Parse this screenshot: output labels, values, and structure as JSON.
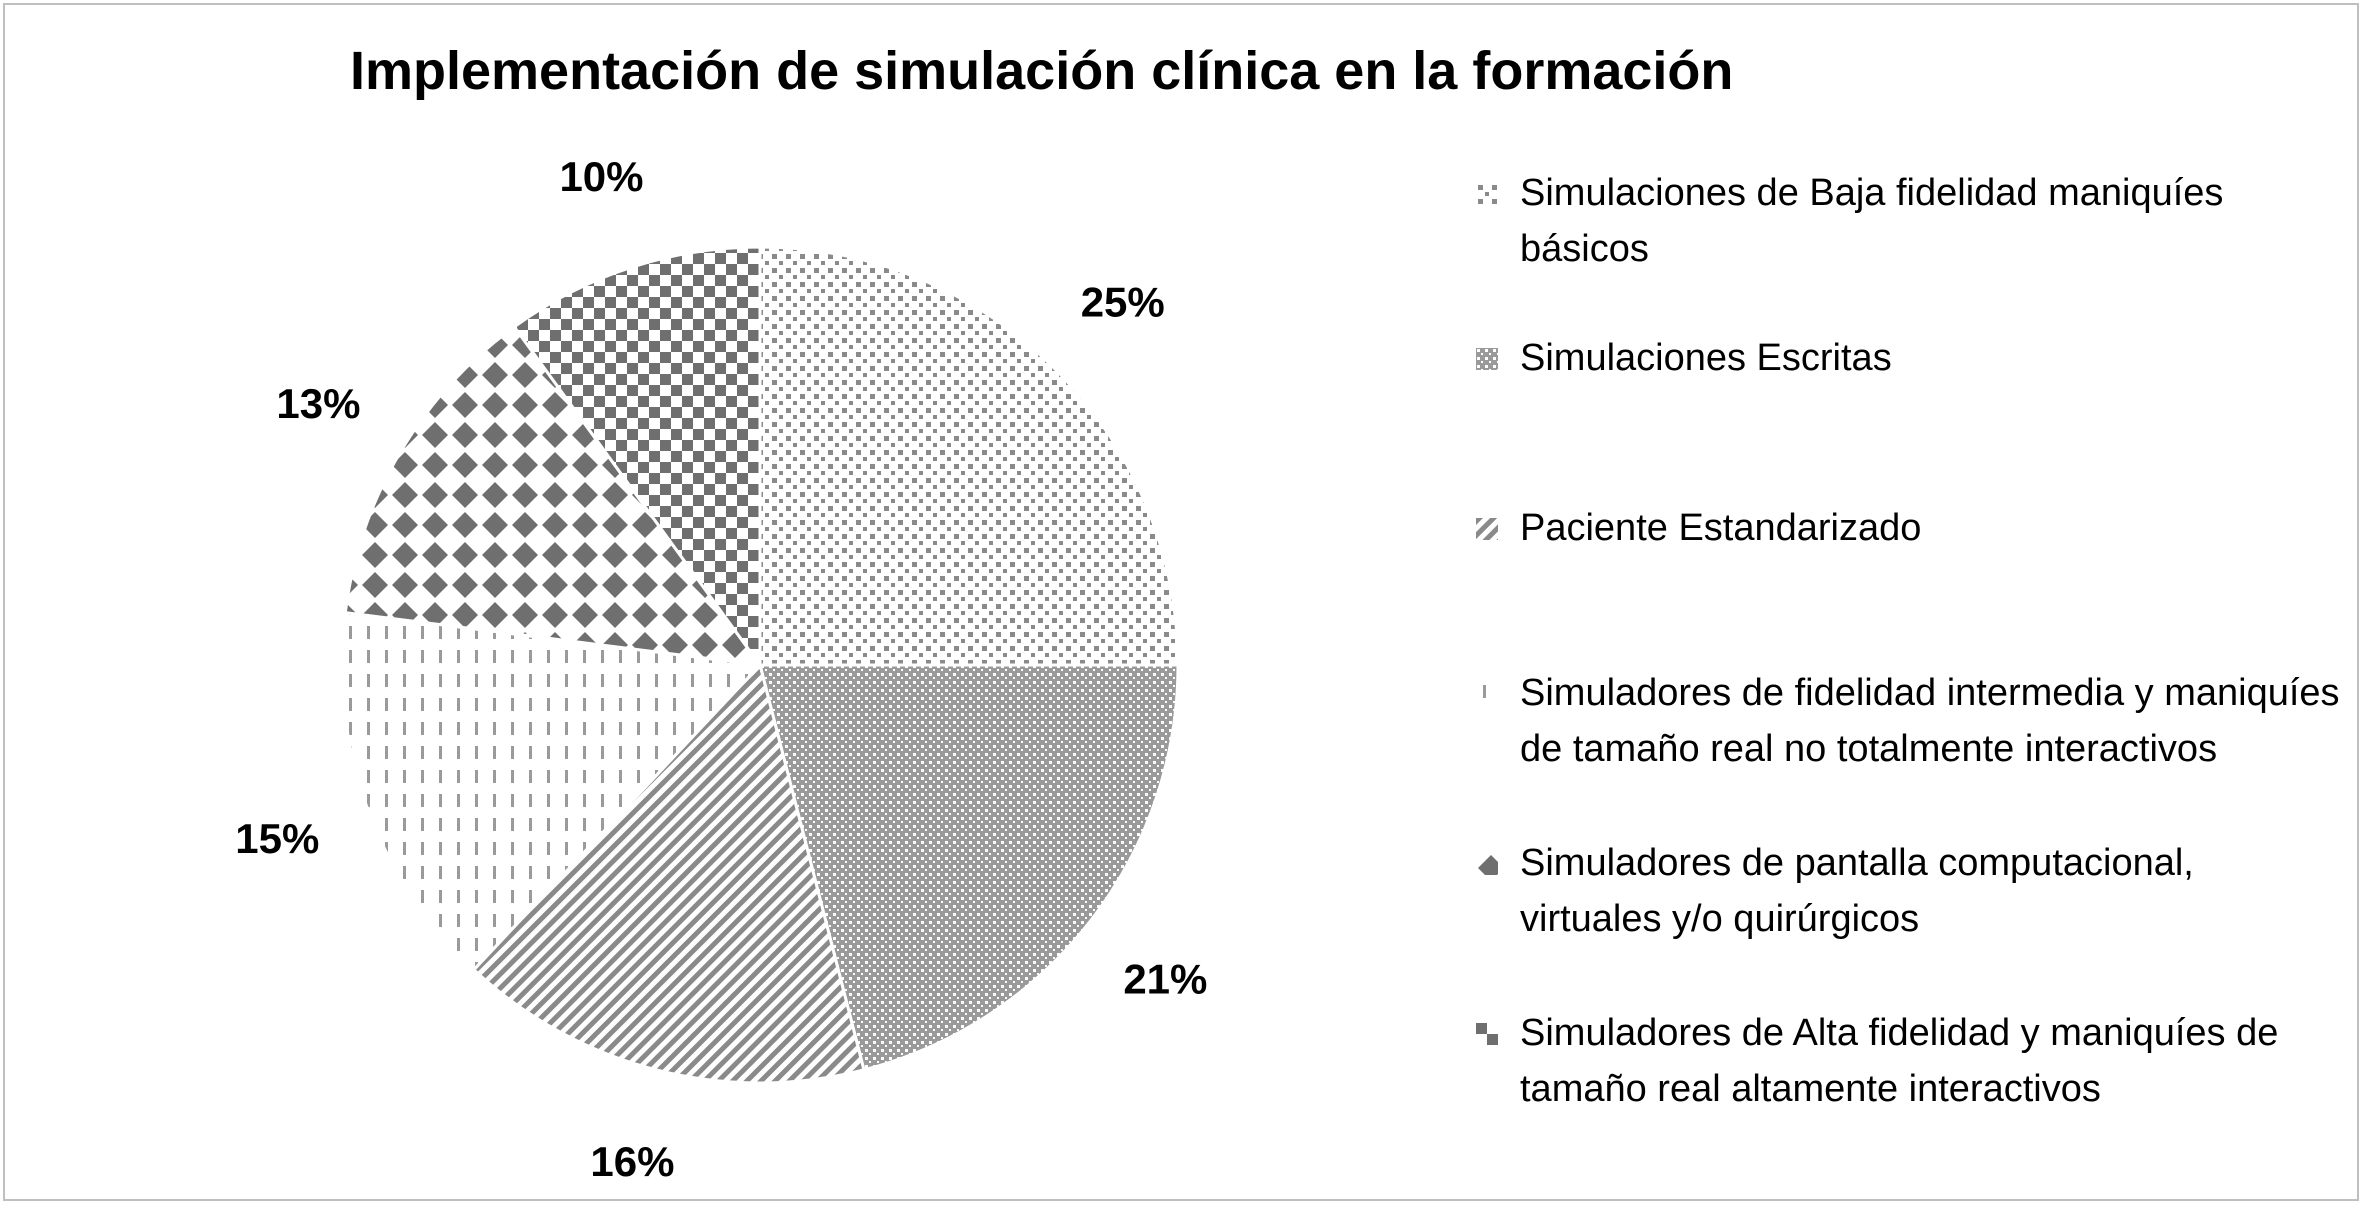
{
  "chart_data": {
    "type": "pie",
    "title": "Implementación de simulación clínica en la formación",
    "categories": [
      "Simulaciones de Baja fidelidad maniquíes básicos",
      "Simulaciones Escritas",
      "Paciente Estandarizado",
      "Simuladores de fidelidad intermedia y maniquíes de tamaño real no totalmente interactivos",
      "Simuladores de pantalla computacional, virtuales y/o quirúrgicos",
      "Simuladores de Alta fidelidad y maniquíes de tamaño real altamente interactivos"
    ],
    "values": [
      25,
      21,
      16,
      15,
      13,
      10
    ],
    "labels": [
      "25%",
      "21%",
      "16%",
      "15%",
      "13%",
      "10%"
    ],
    "legend_position": "right",
    "patterns": [
      "small-squares",
      "fine-dots",
      "diagonal-lines",
      "dashed-vertical",
      "diamonds",
      "checkerboard"
    ],
    "colors": {
      "ink": "#8a8a8a",
      "dark": "#6f6f6f",
      "border": "#bfbfbf"
    }
  }
}
